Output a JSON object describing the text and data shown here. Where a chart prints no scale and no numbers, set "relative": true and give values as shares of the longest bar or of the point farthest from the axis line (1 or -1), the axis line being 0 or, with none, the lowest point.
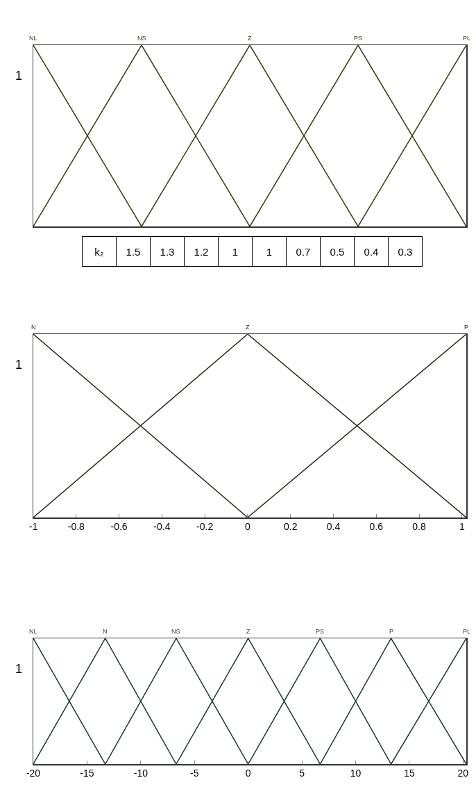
{
  "chart_data": [
    {
      "type": "line",
      "categories": [
        null,
        null,
        null,
        null,
        null
      ],
      "relative": true,
      "tick_labels": false,
      "grid": false,
      "legend": false,
      "ylabel": "1",
      "series": [
        {
          "name": "NL",
          "color": "#3a3a10",
          "values": [
            1,
            0,
            null,
            null,
            null
          ]
        },
        {
          "name": "NS",
          "color": "#3a3a10",
          "values": [
            0,
            1,
            0,
            null,
            null
          ]
        },
        {
          "name": "Z",
          "color": "#3a3a10",
          "values": [
            null,
            0,
            1,
            0,
            null
          ]
        },
        {
          "name": "PS",
          "color": "#3a3a10",
          "values": [
            null,
            null,
            0,
            1,
            0
          ]
        },
        {
          "name": "PL",
          "color": "#3a3a10",
          "values": [
            null,
            null,
            null,
            0,
            1
          ]
        }
      ],
      "annotations": [
        "k₂",
        "1.5",
        "1.3",
        "1.2",
        "1",
        "1",
        "0.7",
        "0.5",
        "0.4",
        "0.3"
      ]
    },
    {
      "type": "line",
      "x": [
        -1,
        0,
        1.02
      ],
      "xlim": [
        -1,
        1.02
      ],
      "xticks": [
        -1,
        -0.8,
        -0.6,
        -0.4,
        -0.2,
        0,
        0.2,
        0.4,
        0.6,
        0.8,
        1
      ],
      "relative": true,
      "tick_labels": "x",
      "grid": false,
      "legend": false,
      "ylabel": "1",
      "series": [
        {
          "name": "N",
          "color": "#2a2a1a",
          "values": [
            1,
            0,
            null
          ]
        },
        {
          "name": "Z",
          "color": "#2a2a1a",
          "values": [
            0,
            1,
            0
          ]
        },
        {
          "name": "P",
          "color": "#2a2a1a",
          "values": [
            null,
            0,
            1
          ]
        }
      ]
    },
    {
      "type": "line",
      "x": [
        -20,
        -13.3,
        -6.7,
        0,
        6.7,
        13.3,
        20.3
      ],
      "xlim": [
        -20,
        20.3
      ],
      "xticks": [
        -20,
        -15,
        -10,
        -5,
        0,
        5,
        10,
        15,
        20
      ],
      "relative": true,
      "tick_labels": "x",
      "grid": false,
      "legend": false,
      "ylabel": "1",
      "series": [
        {
          "name": "NL",
          "color": "#1c3535",
          "values": [
            1,
            0,
            null,
            null,
            null,
            null,
            null
          ]
        },
        {
          "name": "N",
          "color": "#1c3535",
          "values": [
            0,
            1,
            0,
            null,
            null,
            null,
            null
          ]
        },
        {
          "name": "NS",
          "color": "#1c3535",
          "values": [
            null,
            0,
            1,
            0,
            null,
            null,
            null
          ]
        },
        {
          "name": "Z",
          "color": "#1c3535",
          "values": [
            null,
            null,
            0,
            1,
            0,
            null,
            null
          ]
        },
        {
          "name": "PS",
          "color": "#1c3535",
          "values": [
            null,
            null,
            null,
            0,
            1,
            0,
            null
          ]
        },
        {
          "name": "P",
          "color": "#1c3535",
          "values": [
            null,
            null,
            null,
            null,
            0,
            1,
            0
          ]
        },
        {
          "name": "PL",
          "color": "#1c3535",
          "values": [
            null,
            null,
            null,
            null,
            null,
            0,
            1
          ]
        }
      ]
    }
  ]
}
